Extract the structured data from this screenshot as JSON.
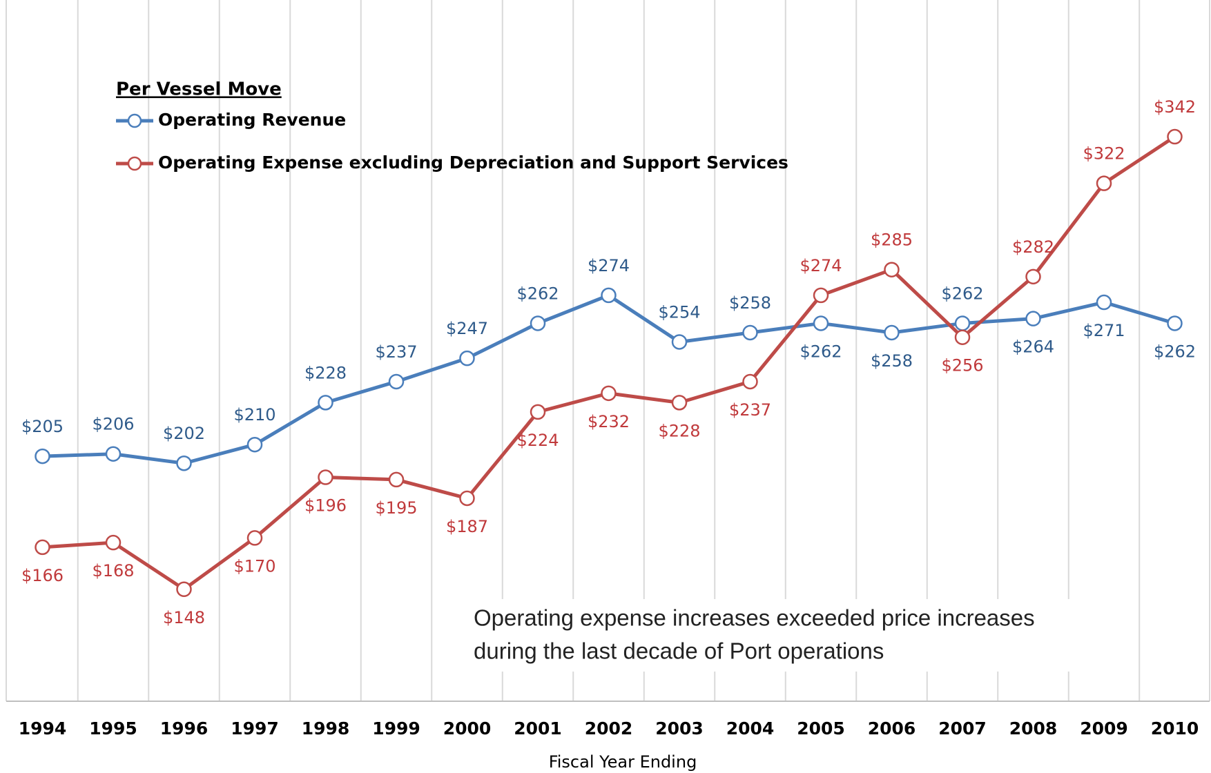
{
  "chart_data": {
    "type": "line",
    "legend_title": "Per Vessel Move",
    "x_label": "Fiscal Year Ending",
    "annotations": [
      "Operating expense increases exceeded price increases",
      "during the last decade of Port operations"
    ],
    "categories": [
      "1994",
      "1995",
      "1996",
      "1997",
      "1998",
      "1999",
      "2000",
      "2001",
      "2002",
      "2003",
      "2004",
      "2005",
      "2006",
      "2007",
      "2008",
      "2009",
      "2010"
    ],
    "series": [
      {
        "name": "Operating Revenue",
        "color": "#4a7ebb",
        "label_color": "#2e5a8a",
        "values": [
          205,
          206,
          202,
          210,
          228,
          237,
          247,
          262,
          274,
          254,
          258,
          262,
          258,
          262,
          264,
          271,
          262
        ],
        "value_labels": [
          "$205",
          "$206",
          "$202",
          "$210",
          "$228",
          "$237",
          "$247",
          "$262",
          "$274",
          "$254",
          "$258",
          "$262",
          "$258",
          "$262",
          "$264",
          "$271",
          "$262"
        ]
      },
      {
        "name": "Operating Expense excluding Depreciation and Support Services",
        "color": "#be4b48",
        "label_color": "#c0393b",
        "values": [
          166,
          168,
          148,
          170,
          196,
          195,
          187,
          224,
          232,
          228,
          237,
          274,
          285,
          256,
          282,
          322,
          342
        ],
        "value_labels": [
          "$166",
          "$168",
          "$148",
          "$170",
          "$196",
          "$195",
          "$187",
          "$224",
          "$232",
          "$228",
          "$237",
          "$274",
          "$285",
          "$256",
          "$282",
          "$322",
          "$342"
        ]
      }
    ],
    "ylim": [
      100,
      400
    ],
    "grid": true
  }
}
